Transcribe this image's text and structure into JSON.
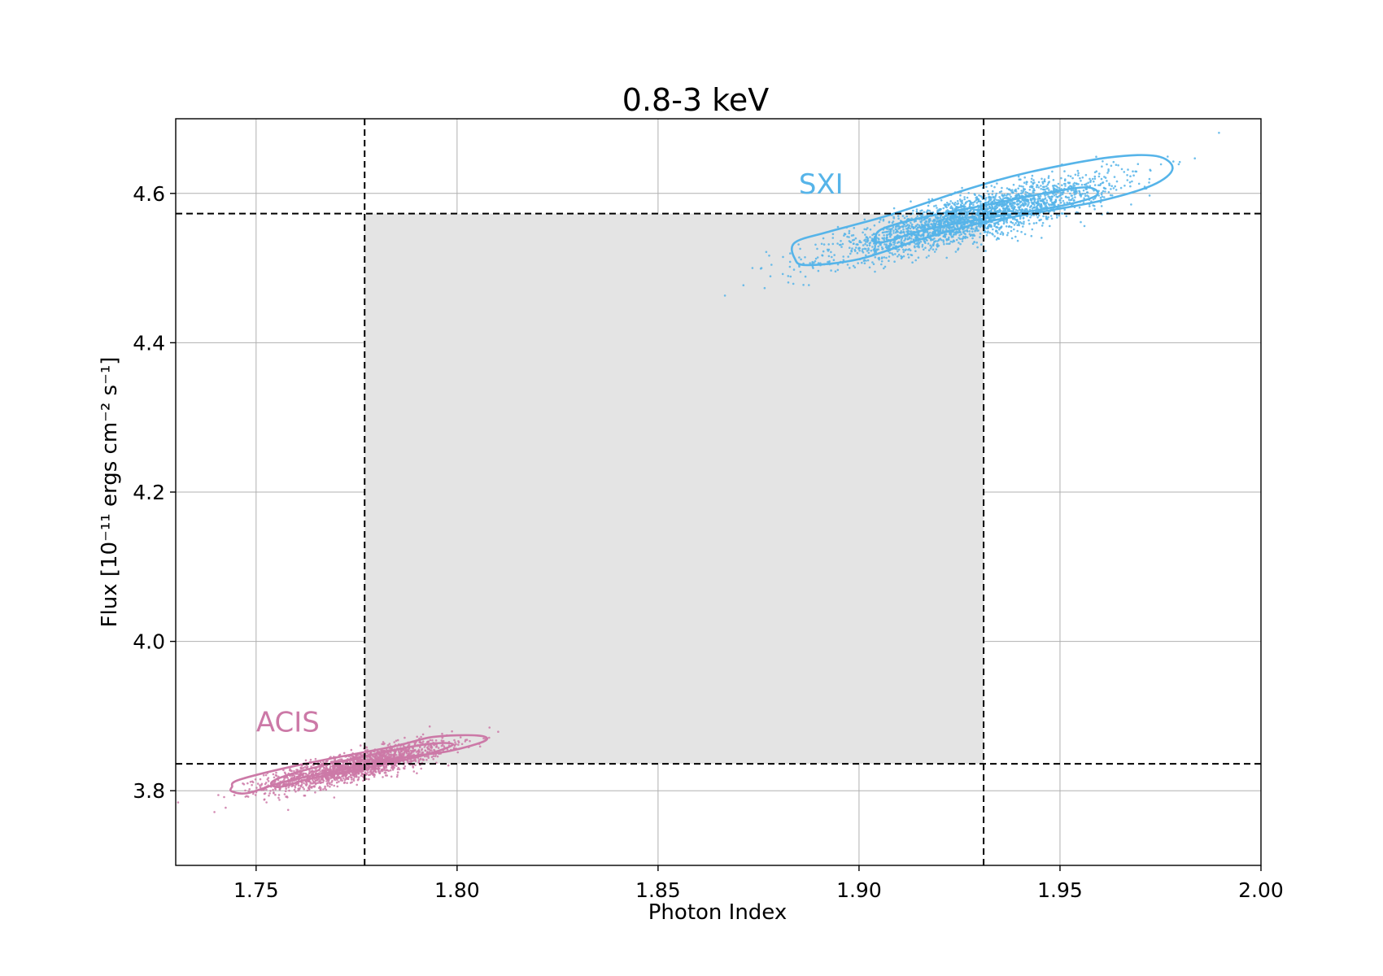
{
  "chart_data": {
    "type": "scatter",
    "title": "0.8-3 keV",
    "xlabel": "Photon Index",
    "ylabel": "Flux [10⁻¹¹ ergs cm⁻² s⁻¹]",
    "xlim": [
      1.73,
      2.0
    ],
    "ylim": [
      3.7,
      4.7
    ],
    "xticks": [
      1.75,
      1.8,
      1.85,
      1.9,
      1.95,
      2.0
    ],
    "xtick_labels": [
      "1.75",
      "1.80",
      "1.85",
      "1.90",
      "1.95",
      "2.00"
    ],
    "yticks": [
      3.8,
      4.0,
      4.2,
      4.4,
      4.6
    ],
    "ytick_labels": [
      "3.8",
      "4.0",
      "4.2",
      "4.4",
      "4.6"
    ],
    "grid": true,
    "shaded_region": {
      "x": [
        1.777,
        1.931
      ],
      "y": [
        3.836,
        4.573
      ],
      "color": "#e4e4e4"
    },
    "reference_lines": {
      "vertical": [
        1.777,
        1.931
      ],
      "horizontal": [
        3.836,
        4.573
      ]
    },
    "series": [
      {
        "name": "ACIS",
        "color": "#cc79a7",
        "center": {
          "x": 1.775,
          "y": 3.833
        },
        "spread": {
          "x": 0.011,
          "y": 0.016
        },
        "correlation": 0.82,
        "n_points": 1900,
        "contours": [
          {
            "level": "inner",
            "points": [
              [
                1.756,
                3.805
              ],
              [
                1.764,
                3.817
              ],
              [
                1.778,
                3.831
              ],
              [
                1.792,
                3.848
              ],
              [
                1.799,
                3.862
              ],
              [
                1.792,
                3.862
              ],
              [
                1.776,
                3.845
              ],
              [
                1.761,
                3.826
              ],
              [
                1.754,
                3.812
              ]
            ]
          },
          {
            "level": "outer",
            "points": [
              [
                1.744,
                3.805
              ],
              [
                1.746,
                3.815
              ],
              [
                1.762,
                3.836
              ],
              [
                1.784,
                3.859
              ],
              [
                1.794,
                3.872
              ],
              [
                1.805,
                3.874
              ],
              [
                1.807,
                3.867
              ],
              [
                1.798,
                3.853
              ],
              [
                1.786,
                3.844
              ],
              [
                1.772,
                3.829
              ],
              [
                1.757,
                3.812
              ],
              [
                1.748,
                3.797
              ],
              [
                1.744,
                3.799
              ]
            ]
          }
        ],
        "label": {
          "text": "ACIS",
          "x": 1.75,
          "y": 3.879
        }
      },
      {
        "name": "SXI",
        "color": "#56b4e9",
        "center": {
          "x": 1.928,
          "y": 4.567
        },
        "spread": {
          "x": 0.017,
          "y": 0.027
        },
        "correlation": 0.85,
        "n_points": 2600,
        "contours": [
          {
            "level": "inner",
            "points": [
              [
                1.904,
                4.541
              ],
              [
                1.906,
                4.553
              ],
              [
                1.916,
                4.568
              ],
              [
                1.932,
                4.585
              ],
              [
                1.948,
                4.602
              ],
              [
                1.957,
                4.608
              ],
              [
                1.959,
                4.597
              ],
              [
                1.95,
                4.583
              ],
              [
                1.933,
                4.568
              ],
              [
                1.917,
                4.552
              ],
              [
                1.907,
                4.536
              ],
              [
                1.904,
                4.535
              ]
            ]
          },
          {
            "level": "outer",
            "points": [
              [
                1.884,
                4.513
              ],
              [
                1.884,
                4.534
              ],
              [
                1.892,
                4.548
              ],
              [
                1.907,
                4.57
              ],
              [
                1.926,
                4.604
              ],
              [
                1.942,
                4.628
              ],
              [
                1.962,
                4.648
              ],
              [
                1.974,
                4.65
              ],
              [
                1.978,
                4.633
              ],
              [
                1.973,
                4.611
              ],
              [
                1.96,
                4.59
              ],
              [
                1.944,
                4.574
              ],
              [
                1.93,
                4.56
              ],
              [
                1.915,
                4.538
              ],
              [
                1.9,
                4.512
              ],
              [
                1.887,
                4.504
              ]
            ]
          }
        ],
        "label": {
          "text": "SXI",
          "x": 1.885,
          "y": 4.6
        }
      }
    ]
  }
}
